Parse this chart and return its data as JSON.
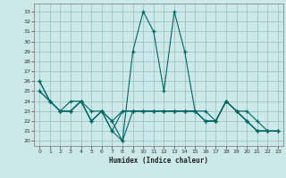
{
  "xlabel": "Humidex (Indice chaleur)",
  "bg_color": "#cce8e8",
  "grid_color": "#9ec4c4",
  "line_color": "#006666",
  "xlim": [
    -0.5,
    23.5
  ],
  "ylim": [
    19.5,
    33.8
  ],
  "yticks": [
    20,
    21,
    22,
    23,
    24,
    25,
    26,
    27,
    28,
    29,
    30,
    31,
    32,
    33
  ],
  "xticks": [
    0,
    1,
    2,
    3,
    4,
    5,
    6,
    7,
    8,
    9,
    10,
    11,
    12,
    13,
    14,
    15,
    16,
    17,
    18,
    19,
    20,
    21,
    22,
    23
  ],
  "series": [
    {
      "x": [
        0,
        1,
        2,
        3,
        4,
        5,
        6,
        7,
        8,
        9,
        10,
        11,
        12,
        13,
        14,
        15,
        16,
        17,
        18,
        19,
        20,
        21,
        22
      ],
      "y": [
        26,
        24,
        23,
        24,
        24,
        22,
        23,
        22,
        20,
        29,
        33,
        31,
        25,
        33,
        29,
        23,
        22,
        22,
        24,
        23,
        22,
        21,
        21
      ]
    },
    {
      "x": [
        0,
        1,
        2,
        3,
        4,
        5,
        6,
        7,
        8,
        9,
        10,
        11,
        12,
        13,
        14,
        15,
        16,
        17,
        18,
        19,
        20,
        21,
        22,
        23
      ],
      "y": [
        25,
        24,
        23,
        23,
        24,
        23,
        23,
        22,
        23,
        23,
        23,
        23,
        23,
        23,
        23,
        23,
        23,
        22,
        24,
        23,
        23,
        22,
        21,
        21
      ]
    },
    {
      "x": [
        0,
        1,
        2,
        3,
        4,
        5,
        6,
        7,
        8,
        9,
        10,
        11,
        12,
        13,
        14,
        15,
        16,
        17,
        18,
        19,
        20,
        21,
        22,
        23
      ],
      "y": [
        25,
        24,
        23,
        23,
        24,
        22,
        23,
        21,
        23,
        23,
        23,
        23,
        23,
        23,
        23,
        23,
        22,
        22,
        24,
        23,
        22,
        21,
        21,
        21
      ]
    },
    {
      "x": [
        0,
        1,
        2,
        3,
        4,
        5,
        6,
        7,
        8,
        9,
        10,
        11,
        12,
        13,
        14,
        15,
        16,
        17,
        18,
        19,
        20,
        21,
        22,
        23
      ],
      "y": [
        26,
        24,
        23,
        23,
        24,
        22,
        23,
        21,
        20,
        23,
        23,
        23,
        23,
        23,
        23,
        23,
        22,
        22,
        24,
        23,
        22,
        21,
        21,
        21
      ]
    }
  ]
}
